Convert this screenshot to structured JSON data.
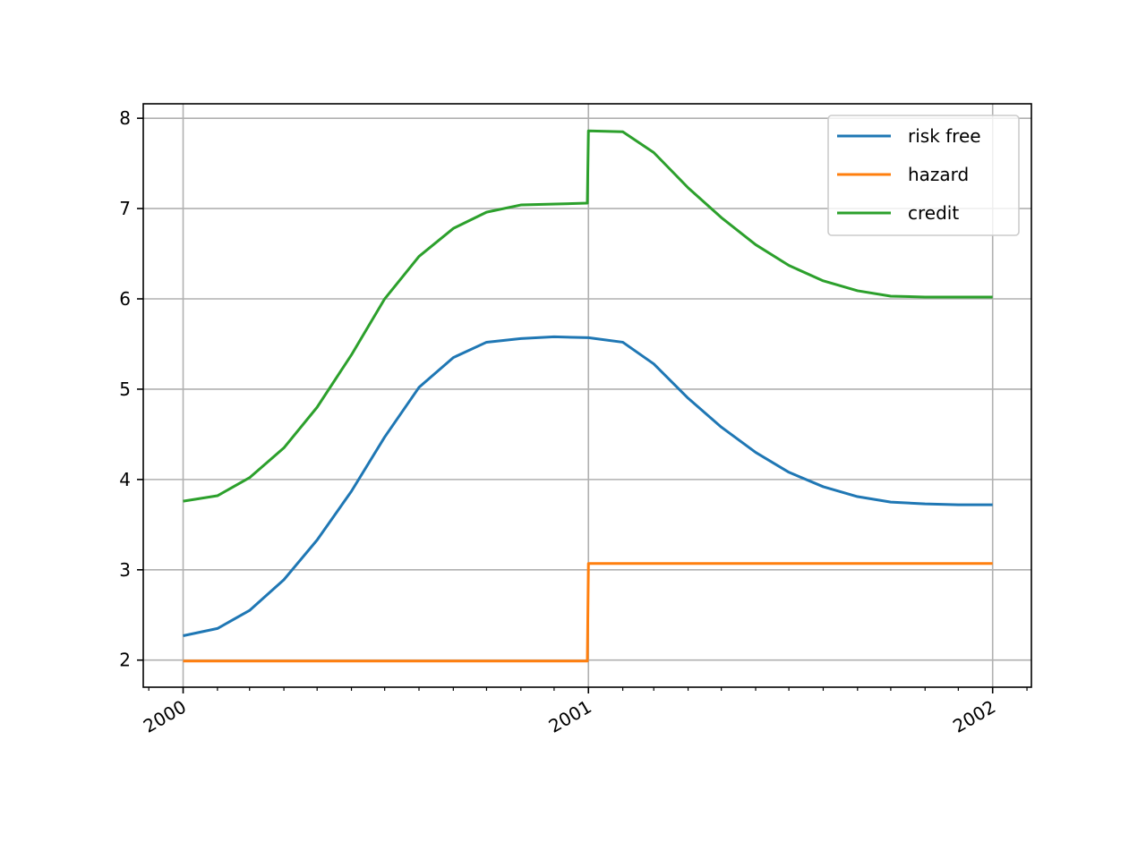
{
  "chart_data": {
    "type": "line",
    "title": "",
    "xlabel": "",
    "ylabel": "",
    "x_ticks": [
      "2000",
      "2001",
      "2002"
    ],
    "y_ticks": [
      2,
      3,
      4,
      5,
      6,
      7,
      8
    ],
    "xlim": [
      "1999-11-26",
      "2002-02-05"
    ],
    "ylim": [
      1.7,
      8.16
    ],
    "grid": true,
    "legend_position": "top-right",
    "series": [
      {
        "name": "risk free",
        "color": "#1f77b4",
        "points": [
          [
            "2000-01-01",
            2.27
          ],
          [
            "2000-02-01",
            2.35
          ],
          [
            "2000-03-01",
            2.55
          ],
          [
            "2000-04-01",
            2.89
          ],
          [
            "2000-05-01",
            3.33
          ],
          [
            "2000-06-01",
            3.87
          ],
          [
            "2000-07-01",
            4.47
          ],
          [
            "2000-08-01",
            5.02
          ],
          [
            "2000-09-01",
            5.35
          ],
          [
            "2000-10-01",
            5.52
          ],
          [
            "2000-11-01",
            5.56
          ],
          [
            "2000-12-01",
            5.58
          ],
          [
            "2001-01-01",
            5.57
          ],
          [
            "2001-02-01",
            5.52
          ],
          [
            "2001-03-01",
            5.28
          ],
          [
            "2001-04-01",
            4.9
          ],
          [
            "2001-05-01",
            4.58
          ],
          [
            "2001-06-01",
            4.3
          ],
          [
            "2001-07-01",
            4.08
          ],
          [
            "2001-08-01",
            3.92
          ],
          [
            "2001-09-01",
            3.81
          ],
          [
            "2001-10-01",
            3.75
          ],
          [
            "2001-11-01",
            3.73
          ],
          [
            "2001-12-01",
            3.72
          ],
          [
            "2002-01-01",
            3.72
          ]
        ]
      },
      {
        "name": "hazard",
        "color": "#ff7f0e",
        "points": [
          [
            "2000-01-01",
            1.99
          ],
          [
            "2000-12-31",
            1.99
          ],
          [
            "2001-01-01",
            3.07
          ],
          [
            "2002-01-01",
            3.07
          ]
        ]
      },
      {
        "name": "credit",
        "color": "#2ca02c",
        "points": [
          [
            "2000-01-01",
            3.76
          ],
          [
            "2000-02-01",
            3.82
          ],
          [
            "2000-03-01",
            4.02
          ],
          [
            "2000-04-01",
            4.35
          ],
          [
            "2000-05-01",
            4.8
          ],
          [
            "2000-06-01",
            5.38
          ],
          [
            "2000-07-01",
            6.0
          ],
          [
            "2000-08-01",
            6.47
          ],
          [
            "2000-09-01",
            6.78
          ],
          [
            "2000-10-01",
            6.96
          ],
          [
            "2000-11-01",
            7.04
          ],
          [
            "2000-12-31",
            7.06
          ],
          [
            "2001-01-01",
            7.86
          ],
          [
            "2001-02-01",
            7.85
          ],
          [
            "2001-03-01",
            7.62
          ],
          [
            "2001-04-01",
            7.23
          ],
          [
            "2001-05-01",
            6.9
          ],
          [
            "2001-06-01",
            6.6
          ],
          [
            "2001-07-01",
            6.37
          ],
          [
            "2001-08-01",
            6.2
          ],
          [
            "2001-09-01",
            6.09
          ],
          [
            "2001-10-01",
            6.03
          ],
          [
            "2001-11-01",
            6.02
          ],
          [
            "2001-12-01",
            6.02
          ],
          [
            "2002-01-01",
            6.02
          ]
        ]
      }
    ]
  }
}
